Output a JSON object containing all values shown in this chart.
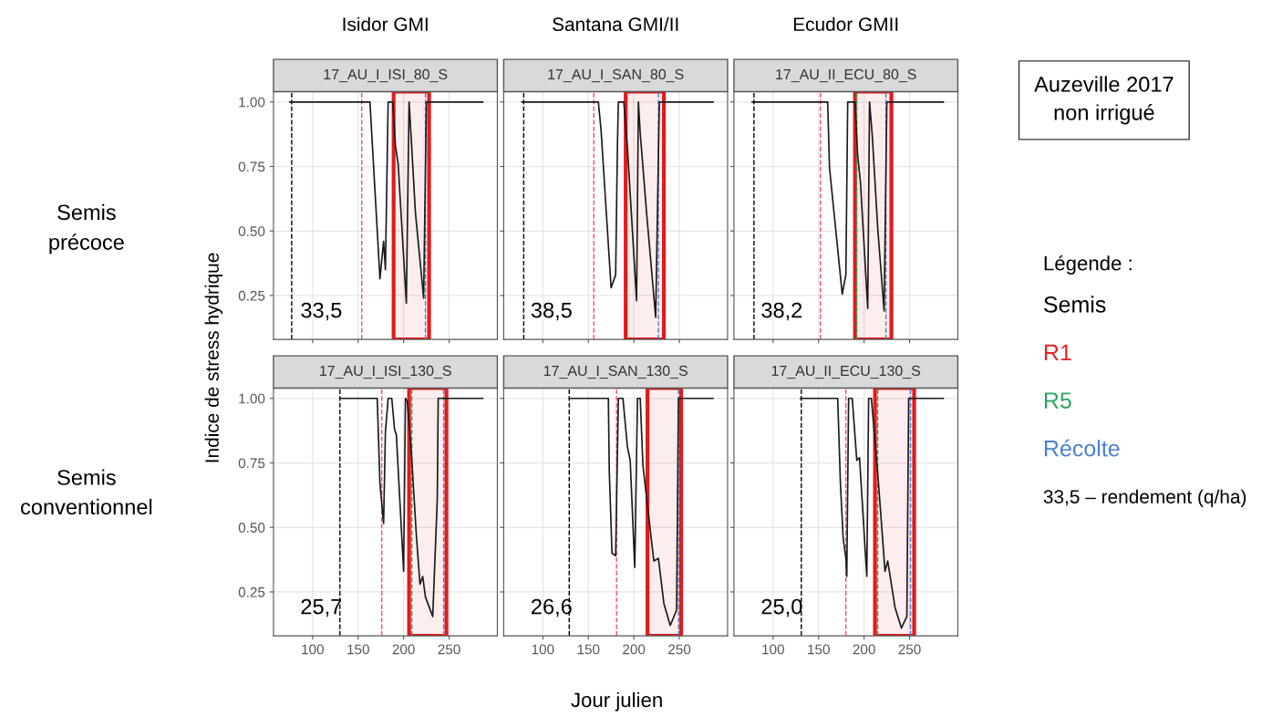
{
  "chart_data": [
    {
      "type": "line",
      "title": "Isidor GMI",
      "subtitle": "17_AU_I_ISI_80_S",
      "annotations": [
        "33,5"
      ],
      "series": [
        {
          "color": "#1a1a1a",
          "x": [
            75,
            163,
            174,
            178,
            180,
            183,
            188,
            191,
            194,
            203,
            206,
            208,
            213,
            222,
            225,
            287
          ],
          "values": [
            1.0,
            1.0,
            0.315,
            0.46,
            0.35,
            1.0,
            1.0,
            0.83,
            0.76,
            0.22,
            1.0,
            0.88,
            0.57,
            0.24,
            1.0,
            1.0
          ]
        }
      ],
      "ref_lines": [
        {
          "axis": "x",
          "value": 77,
          "color": "#000000",
          "line_style": "dashed"
        },
        {
          "axis": "x",
          "value": 154,
          "color": "#f0506e",
          "line_style": "dashed"
        },
        {
          "axis": "x",
          "value": 224,
          "color": "#4a7fd4",
          "line_style": "dashed"
        }
      ],
      "bands": [
        {
          "axis": "x",
          "from": 189,
          "to": 228,
          "color": "#e31a1c"
        }
      ],
      "xlim": [
        57,
        303
      ],
      "ylim": [
        0.08,
        1.04
      ],
      "xticks": [
        100,
        150,
        200,
        250
      ],
      "yticks": [
        {
          "value": 0.25,
          "label": "0.25"
        },
        {
          "value": 0.5,
          "label": "0.50"
        },
        {
          "value": 0.75,
          "label": "0.75"
        },
        {
          "value": 1.0,
          "label": "1.00"
        }
      ],
      "tick_labels": "y",
      "grid": true,
      "line_style": "solid"
    },
    {
      "type": "line",
      "title": "Santana GMI/II",
      "subtitle": "17_AU_I_SAN_80_S",
      "annotations": [
        "38,5"
      ],
      "series": [
        {
          "color": "#1a1a1a",
          "x": [
            77,
            161,
            164,
            175,
            180,
            182,
            183,
            189,
            193,
            203,
            205,
            207,
            214,
            224,
            228,
            287
          ],
          "values": [
            1.0,
            1.0,
            0.89,
            0.28,
            0.33,
            0.84,
            1.0,
            1.0,
            0.82,
            0.23,
            1.0,
            0.88,
            0.57,
            0.165,
            1.0,
            1.0
          ]
        }
      ],
      "ref_lines": [
        {
          "axis": "x",
          "value": 79,
          "color": "#000000",
          "line_style": "dashed"
        },
        {
          "axis": "x",
          "value": 156,
          "color": "#f0506e",
          "line_style": "dashed"
        },
        {
          "axis": "x",
          "value": 227,
          "color": "#4a7fd4",
          "line_style": "dashed"
        }
      ],
      "bands": [
        {
          "axis": "x",
          "from": 191,
          "to": 233,
          "color": "#e31a1c"
        }
      ],
      "xlim": [
        57,
        303
      ],
      "ylim": [
        0.08,
        1.04
      ],
      "xticks": [
        100,
        150,
        200,
        250
      ],
      "yticks": [
        0.25,
        0.5,
        0.75,
        1.0
      ],
      "tick_labels": false,
      "grid": true,
      "line_style": "solid"
    },
    {
      "type": "line",
      "title": "Ecudor GMII",
      "subtitle": "17_AU_II_ECU_80_S",
      "annotations": [
        "38,2"
      ],
      "series": [
        {
          "color": "#1a1a1a",
          "x": [
            77,
            160,
            162,
            176,
            180,
            182,
            190,
            193,
            196,
            204,
            206,
            209,
            215,
            222,
            225,
            287
          ],
          "values": [
            1.0,
            1.0,
            0.745,
            0.255,
            0.33,
            1.0,
            1.0,
            0.79,
            0.69,
            0.2,
            1.0,
            0.87,
            0.51,
            0.19,
            1.0,
            1.0
          ]
        }
      ],
      "ref_lines": [
        {
          "axis": "x",
          "value": 79,
          "color": "#000000",
          "line_style": "dashed"
        },
        {
          "axis": "x",
          "value": 152,
          "color": "#f0506e",
          "line_style": "dashed"
        },
        {
          "axis": "x",
          "value": 192,
          "color": "#2ca25f",
          "line_style": "dashed"
        },
        {
          "axis": "x",
          "value": 224,
          "color": "#4a7fd4",
          "line_style": "dashed"
        }
      ],
      "bands": [
        {
          "axis": "x",
          "from": 190,
          "to": 230,
          "color": "#e31a1c"
        }
      ],
      "xlim": [
        57,
        303
      ],
      "ylim": [
        0.08,
        1.04
      ],
      "xticks": [
        100,
        150,
        200,
        250
      ],
      "yticks": [
        0.25,
        0.5,
        0.75,
        1.0
      ],
      "tick_labels": false,
      "grid": true,
      "line_style": "solid"
    },
    {
      "type": "line",
      "subtitle": "17_AU_I_ISI_130_S",
      "annotations": [
        "25,7"
      ],
      "series": [
        {
          "color": "#1a1a1a",
          "x": [
            130,
            171,
            174,
            178,
            180,
            183,
            187,
            190,
            192,
            200,
            202,
            204,
            208,
            214,
            218,
            221,
            224,
            232,
            237,
            238,
            287
          ],
          "values": [
            1.0,
            1.0,
            0.67,
            0.515,
            0.87,
            1.0,
            1.0,
            0.88,
            0.86,
            0.33,
            1.0,
            0.99,
            0.82,
            0.47,
            0.28,
            0.31,
            0.23,
            0.155,
            0.61,
            1.0,
            1.0
          ]
        }
      ],
      "ref_lines": [
        {
          "axis": "x",
          "value": 130,
          "color": "#000000",
          "line_style": "dashed"
        },
        {
          "axis": "x",
          "value": 176,
          "color": "#f0506e",
          "line_style": "dashed"
        },
        {
          "axis": "x",
          "value": 209,
          "color": "#2ca25f",
          "line_style": "dashed"
        },
        {
          "axis": "x",
          "value": 244,
          "color": "#4a7fd4",
          "line_style": "dashed"
        }
      ],
      "bands": [
        {
          "axis": "x",
          "from": 206,
          "to": 247,
          "color": "#e31a1c"
        }
      ],
      "xlim": [
        57,
        303
      ],
      "ylim": [
        0.08,
        1.04
      ],
      "xticks": [
        100,
        150,
        200,
        250
      ],
      "yticks": [
        {
          "value": 0.25,
          "label": "0.25"
        },
        {
          "value": 0.5,
          "label": "0.50"
        },
        {
          "value": 0.75,
          "label": "0.75"
        },
        {
          "value": 1.0,
          "label": "1.00"
        }
      ],
      "grid": true,
      "line_style": "solid"
    },
    {
      "type": "line",
      "subtitle": "17_AU_I_SAN_130_S",
      "annotations": [
        "26,6"
      ],
      "series": [
        {
          "color": "#1a1a1a",
          "x": [
            129,
            172,
            173,
            176,
            180,
            183,
            188,
            193,
            196,
            201,
            204,
            207,
            210,
            219,
            222,
            227,
            233,
            240,
            247,
            249,
            287
          ],
          "values": [
            1.0,
            1.0,
            0.72,
            0.4,
            0.39,
            1.0,
            1.0,
            0.81,
            0.76,
            0.345,
            1.0,
            1.0,
            0.74,
            0.46,
            0.37,
            0.38,
            0.205,
            0.12,
            0.18,
            1.0,
            1.0
          ]
        }
      ],
      "ref_lines": [
        {
          "axis": "x",
          "value": 129,
          "color": "#000000",
          "line_style": "dashed"
        },
        {
          "axis": "x",
          "value": 181,
          "color": "#f0506e",
          "line_style": "dashed"
        },
        {
          "axis": "x",
          "value": 249,
          "color": "#4a7fd4",
          "line_style": "dashed"
        }
      ],
      "bands": [
        {
          "axis": "x",
          "from": 215,
          "to": 252,
          "color": "#e31a1c"
        }
      ],
      "xlim": [
        57,
        303
      ],
      "ylim": [
        0.08,
        1.04
      ],
      "xticks": [
        100,
        150,
        200,
        250
      ],
      "yticks": [
        0.25,
        0.5,
        0.75,
        1.0
      ],
      "tick_labels": "x",
      "grid": true,
      "line_style": "solid"
    },
    {
      "type": "line",
      "subtitle": "17_AU_II_ECU_130_S",
      "annotations": [
        "25,0"
      ],
      "series": [
        {
          "color": "#1a1a1a",
          "x": [
            130,
            171,
            174,
            177,
            180,
            181,
            183,
            187,
            192,
            195,
            203,
            205,
            208,
            215,
            223,
            226,
            234,
            241,
            247,
            249,
            287
          ],
          "values": [
            1.0,
            1.0,
            0.67,
            0.46,
            0.38,
            0.31,
            1.0,
            1.0,
            0.76,
            0.77,
            0.31,
            1.0,
            1.0,
            0.71,
            0.33,
            0.37,
            0.19,
            0.11,
            0.155,
            1.0,
            1.0
          ]
        }
      ],
      "ref_lines": [
        {
          "axis": "x",
          "value": 131,
          "color": "#000000",
          "line_style": "dashed"
        },
        {
          "axis": "x",
          "value": 180,
          "color": "#f0506e",
          "line_style": "dashed"
        },
        {
          "axis": "x",
          "value": 215,
          "color": "#2ca25f",
          "line_style": "dashed"
        },
        {
          "axis": "x",
          "value": 251,
          "color": "#4a7fd4",
          "line_style": "dashed"
        }
      ],
      "bands": [
        {
          "axis": "x",
          "from": 212,
          "to": 255,
          "color": "#e31a1c"
        }
      ],
      "xlim": [
        57,
        303
      ],
      "ylim": [
        0.08,
        1.04
      ],
      "xticks": [
        100,
        150,
        200,
        250
      ],
      "yticks": [
        0.25,
        0.5,
        0.75,
        1.0
      ],
      "tick_labels": "x",
      "grid": true,
      "line_style": "solid"
    },
    {
      "type": "other",
      "title": "Auzeville 2017\nnon irrigué",
      "xlabel": "Jour julien",
      "ylabel": "Indice de stress hydrique",
      "legend_title": "Légende :",
      "categories": [
        "Semis",
        "R1",
        "R5",
        "Récolte"
      ],
      "colors": [
        "#000000",
        "#e8202a",
        "#2ca25f",
        "#4a7fd4"
      ],
      "annotations": [
        "Semis\nprécoce",
        "Semis\nconventionnel",
        "33,5 – rendement (q/ha)"
      ]
    }
  ]
}
